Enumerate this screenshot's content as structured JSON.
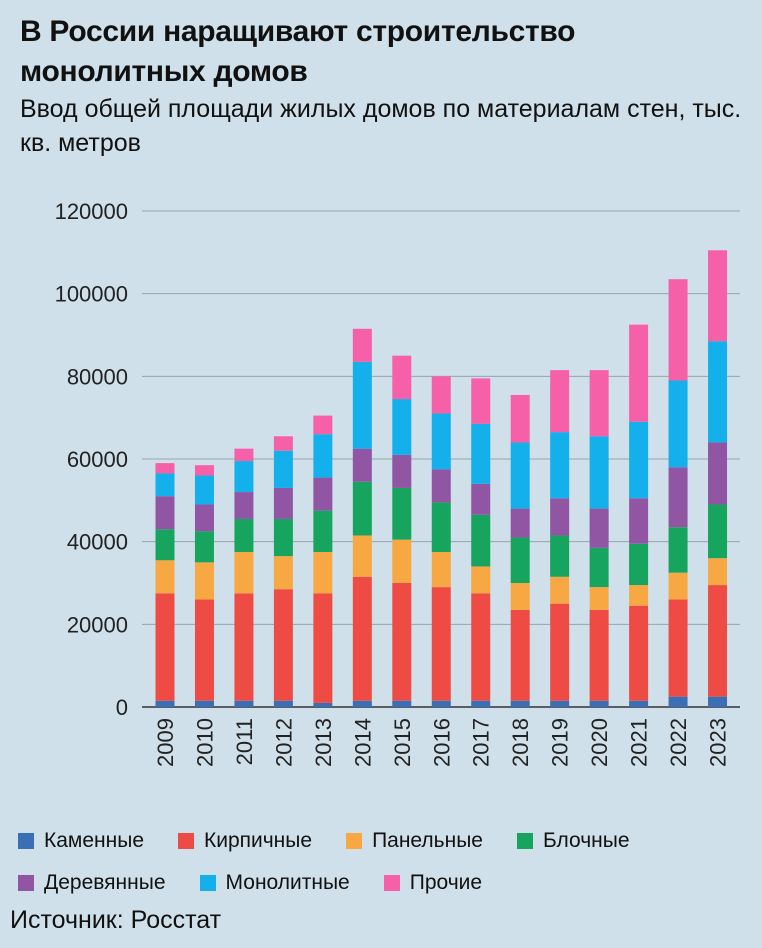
{
  "header": {
    "title": "В России наращивают строительство монолитных домов",
    "subtitle": "Ввод общей площади жилых домов по материалам стен, тыс. кв. метров"
  },
  "footer": {
    "source": "Источник: Росстат"
  },
  "chart_data": {
    "type": "bar",
    "stacked": true,
    "title": "",
    "xlabel": "",
    "ylabel": "",
    "ylim": [
      0,
      120000
    ],
    "yticks": [
      0,
      20000,
      40000,
      60000,
      80000,
      100000,
      120000
    ],
    "grid": true,
    "legend_position": "bottom",
    "categories": [
      "2009",
      "2010",
      "2011",
      "2012",
      "2013",
      "2014",
      "2015",
      "2016",
      "2017",
      "2018",
      "2019",
      "2020",
      "2021",
      "2022",
      "2023"
    ],
    "series": [
      {
        "name": "Каменные",
        "color": "#3a6fb5",
        "values": [
          1500,
          1500,
          1500,
          1500,
          1000,
          1500,
          1500,
          1500,
          1500,
          1500,
          1500,
          1500,
          1500,
          2500,
          2500
        ]
      },
      {
        "name": "Кирпичные",
        "color": "#ef4b45",
        "values": [
          26000,
          24500,
          26000,
          27000,
          26500,
          30000,
          28500,
          27500,
          26000,
          22000,
          23500,
          22000,
          23000,
          23500,
          27000
        ]
      },
      {
        "name": "Панельные",
        "color": "#f8a843",
        "values": [
          8000,
          9000,
          10000,
          8000,
          10000,
          10000,
          10500,
          8500,
          6500,
          6500,
          6500,
          5500,
          5000,
          6500,
          6500
        ]
      },
      {
        "name": "Блочные",
        "color": "#16a45f",
        "values": [
          7500,
          7500,
          8000,
          9000,
          10000,
          13000,
          12500,
          12000,
          12500,
          11000,
          10000,
          9500,
          10000,
          11000,
          13000
        ]
      },
      {
        "name": "Деревянные",
        "color": "#9056a3",
        "values": [
          8000,
          6500,
          6500,
          7500,
          8000,
          8000,
          8000,
          8000,
          7500,
          7000,
          9000,
          9500,
          11000,
          14500,
          15000
        ]
      },
      {
        "name": "Монолитные",
        "color": "#13b0ec",
        "values": [
          5500,
          7000,
          7500,
          9000,
          10500,
          21000,
          13500,
          13500,
          14500,
          16000,
          16000,
          17500,
          18500,
          21000,
          24500
        ]
      },
      {
        "name": "Прочие",
        "color": "#f660a8",
        "values": [
          2500,
          2500,
          3000,
          3500,
          4500,
          8000,
          10500,
          9000,
          11000,
          11500,
          15000,
          16000,
          23500,
          24500,
          22000
        ]
      }
    ]
  }
}
